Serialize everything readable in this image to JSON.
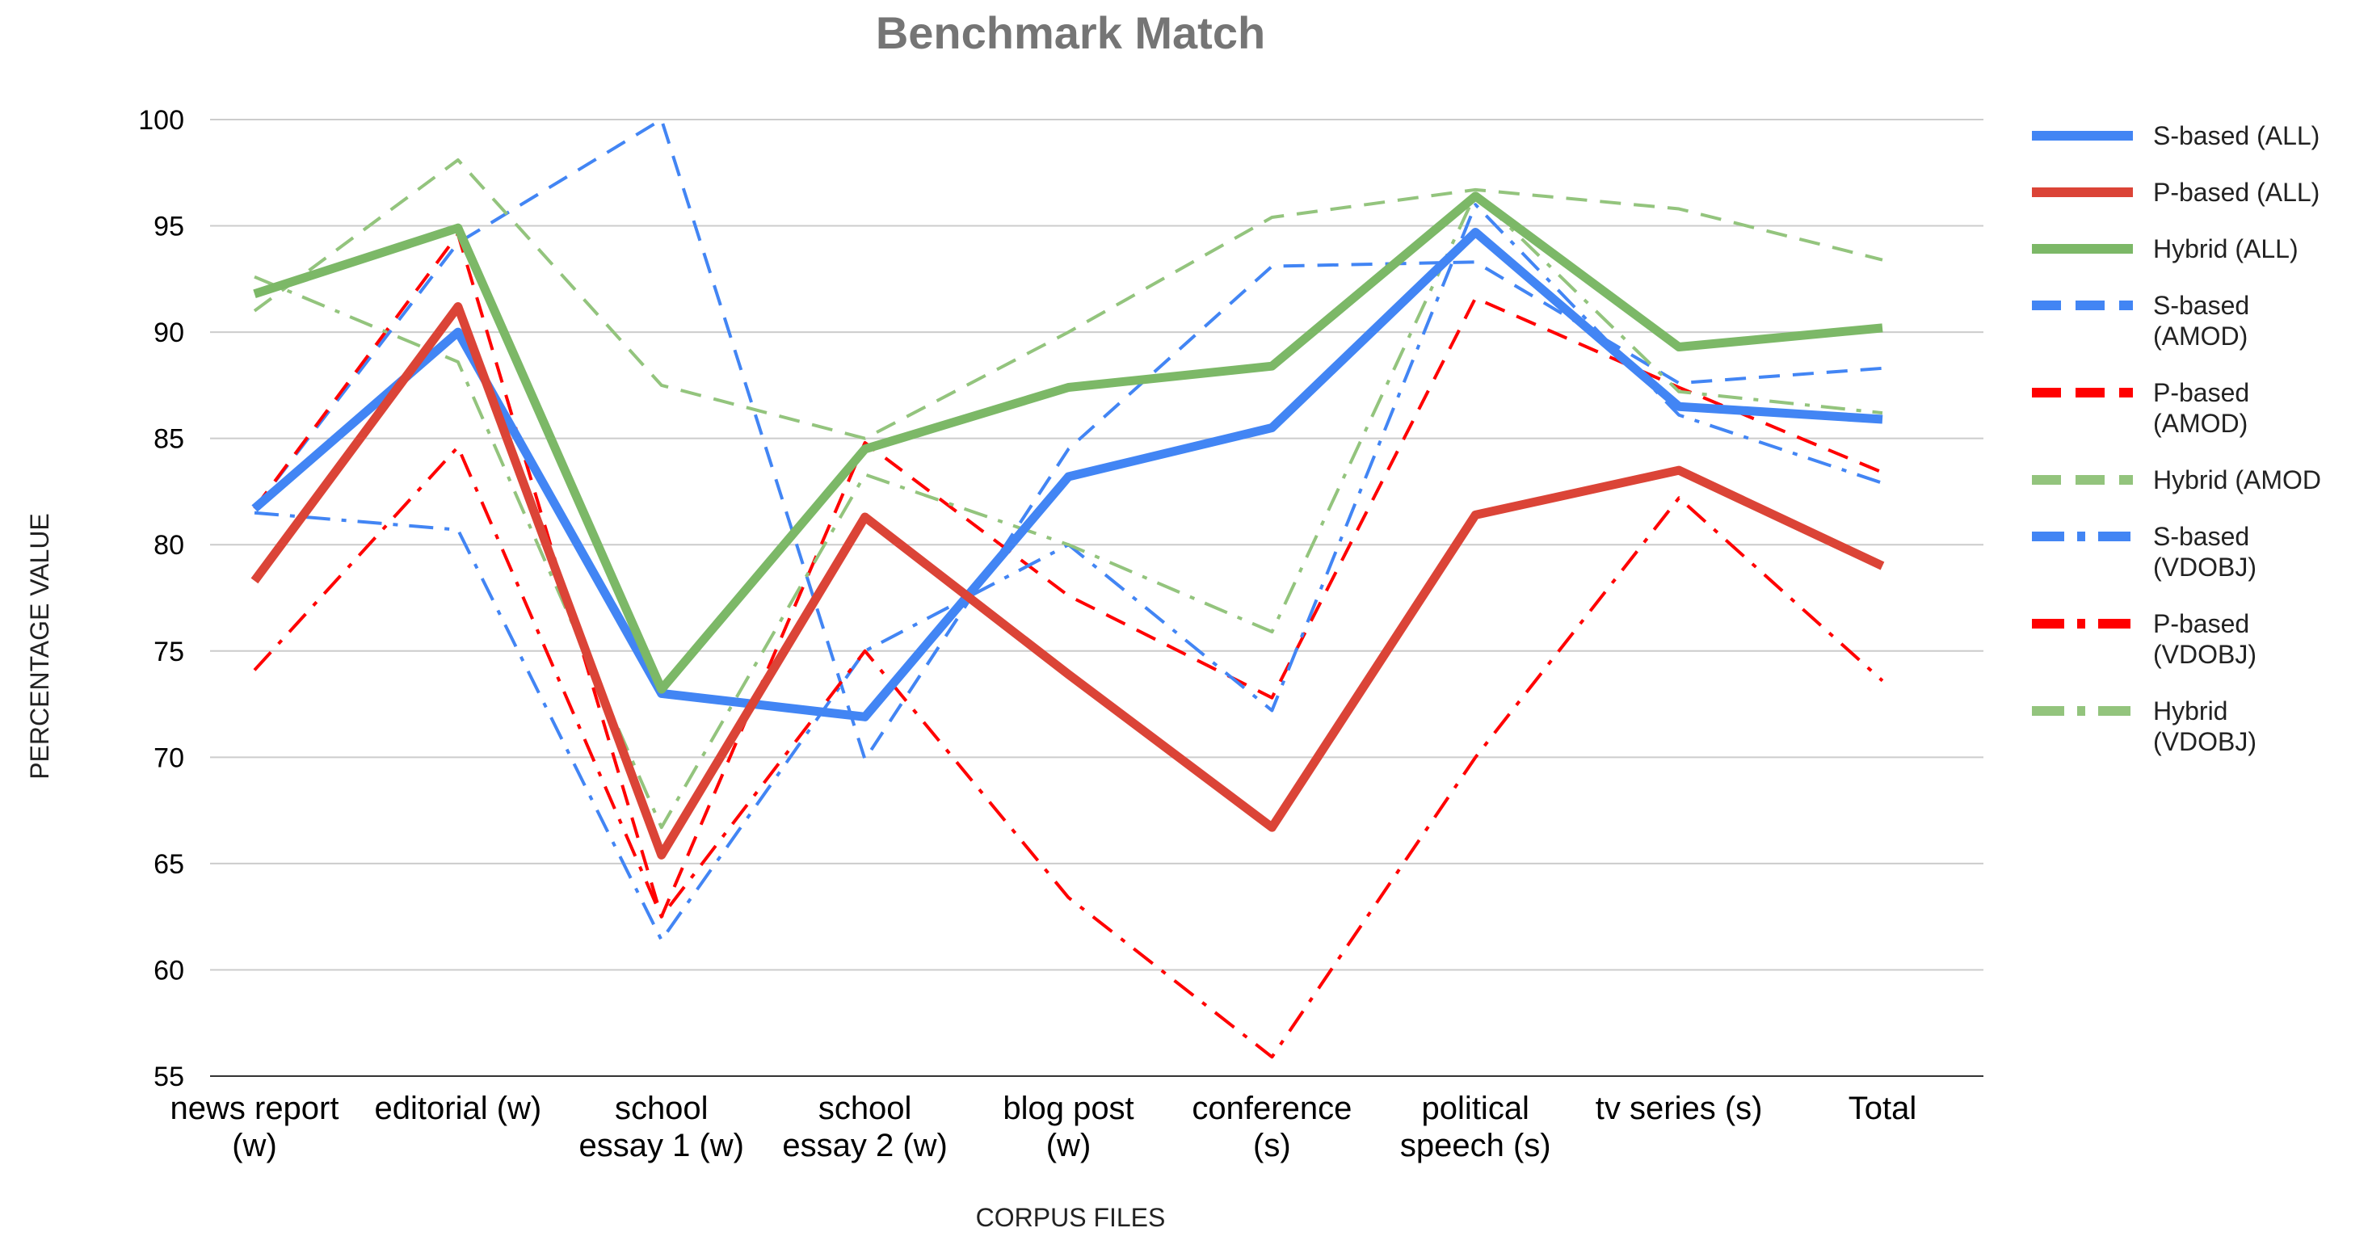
{
  "chart_data": {
    "type": "line",
    "title": "Benchmark Match",
    "xlabel": "CORPUS FILES",
    "ylabel": "PERCENTAGE VALUE",
    "ylim": [
      55,
      100
    ],
    "yticks": [
      "55",
      "60",
      "65",
      "70",
      "75",
      "80",
      "85",
      "90",
      "95",
      "100"
    ],
    "grid": true,
    "legend_position": "right",
    "categories": [
      [
        "news report",
        "(w)"
      ],
      [
        "editorial (w)"
      ],
      [
        "school",
        "essay 1 (w)"
      ],
      [
        "school",
        "essay 2 (w)"
      ],
      [
        "blog post",
        "(w)"
      ],
      [
        "conference",
        "(s)"
      ],
      [
        "political",
        "speech (s)"
      ],
      [
        "tv series (s)"
      ],
      [
        "Total"
      ]
    ],
    "series": [
      {
        "name": [
          "S-based (ALL)"
        ],
        "color": "#4285f4",
        "style": "solid",
        "weight": "thick",
        "values": [
          81.7,
          90.0,
          73.0,
          71.9,
          83.2,
          85.5,
          94.7,
          86.5,
          85.9
        ]
      },
      {
        "name": [
          "P-based (ALL)"
        ],
        "color": "#db4437",
        "style": "solid",
        "weight": "thick",
        "values": [
          78.3,
          91.2,
          65.4,
          81.3,
          73.9,
          66.7,
          81.4,
          83.5,
          79.0
        ]
      },
      {
        "name": [
          "Hybrid (ALL)"
        ],
        "color": "#7cb867",
        "style": "solid",
        "weight": "thick",
        "values": [
          91.8,
          94.9,
          73.2,
          84.5,
          87.4,
          88.4,
          96.4,
          89.3,
          90.2
        ]
      },
      {
        "name": [
          "S-based",
          "(AMOD)"
        ],
        "color": "#4285f4",
        "style": "dash",
        "weight": "thin",
        "values": [
          81.7,
          94.2,
          100.0,
          69.9,
          84.5,
          93.1,
          93.3,
          87.6,
          88.3
        ]
      },
      {
        "name": [
          "P-based",
          "(AMOD)"
        ],
        "color": "#ff0000",
        "style": "dash",
        "weight": "thin",
        "values": [
          81.7,
          94.6,
          62.5,
          84.8,
          77.6,
          72.8,
          91.6,
          87.4,
          83.4
        ]
      },
      {
        "name": [
          "Hybrid (AMOD"
        ],
        "color": "#93c47d",
        "style": "dash",
        "weight": "thin",
        "values": [
          91.0,
          98.1,
          87.5,
          85.0,
          90.0,
          95.4,
          96.7,
          95.8,
          93.4
        ]
      },
      {
        "name": [
          "S-based",
          "(VDOBJ)"
        ],
        "color": "#4285f4",
        "style": "dashdot",
        "weight": "thin",
        "values": [
          81.5,
          80.7,
          61.4,
          75.0,
          80.0,
          72.2,
          96.0,
          86.1,
          82.9
        ]
      },
      {
        "name": [
          "P-based",
          "(VDOBJ)"
        ],
        "color": "#ff0000",
        "style": "dashdot",
        "weight": "thin",
        "values": [
          74.1,
          84.6,
          62.5,
          75.0,
          63.4,
          55.9,
          70.0,
          82.2,
          73.6
        ]
      },
      {
        "name": [
          "Hybrid",
          "(VDOBJ)"
        ],
        "color": "#93c47d",
        "style": "dashdot",
        "weight": "thin",
        "values": [
          92.6,
          88.6,
          66.7,
          83.3,
          80.0,
          75.9,
          96.5,
          87.2,
          86.2
        ]
      }
    ]
  }
}
